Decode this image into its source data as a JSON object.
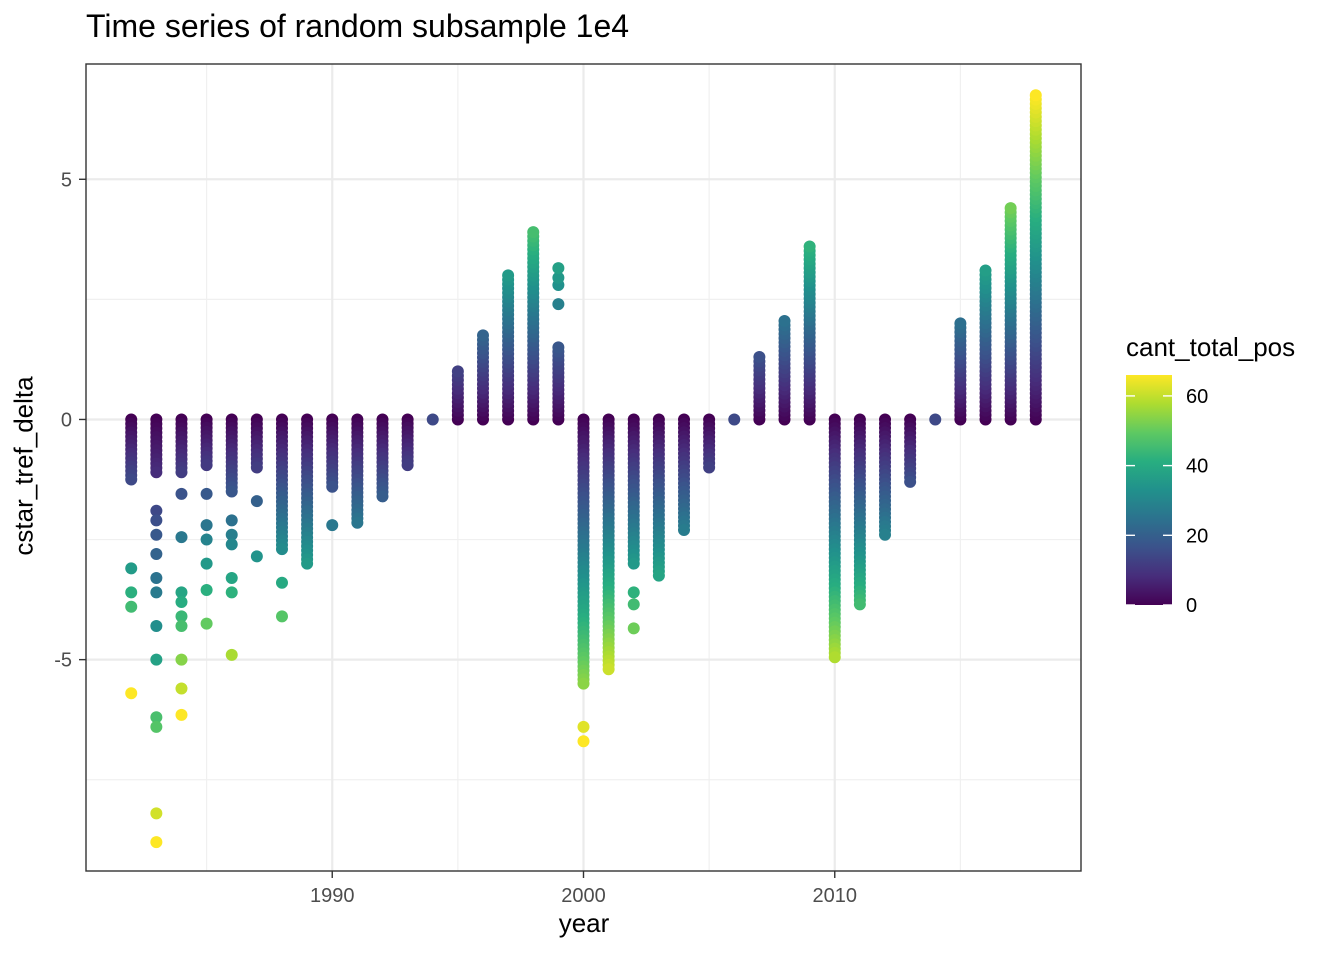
{
  "chart_data": {
    "type": "scatter",
    "title": "Time series of random subsample 1e4",
    "xlabel": "year",
    "ylabel": "cstar_tref_delta",
    "xlim": [
      1980.2,
      2019.8
    ],
    "ylim": [
      -9.4,
      7.4
    ],
    "x_ticks": [
      1990,
      2000,
      2010
    ],
    "x_tick_labels": [
      "1990",
      "2000",
      "2010"
    ],
    "y_ticks": [
      -5,
      0,
      5
    ],
    "y_tick_labels": [
      "-5",
      "0",
      "5"
    ],
    "grid": true,
    "legend": {
      "title": "cant_total_pos",
      "position": "right",
      "type": "colorbar",
      "range": [
        0,
        66
      ],
      "ticks": [
        0,
        20,
        40,
        60
      ],
      "tick_labels": [
        "0",
        "20",
        "40",
        "60"
      ],
      "palette": "viridis"
    },
    "series": [
      {
        "year": 1982,
        "extreme": -1.25,
        "outliers": [
          -3.1,
          -3.6,
          -3.9,
          -5.7
        ]
      },
      {
        "year": 1983,
        "extreme": -1.1,
        "outliers": [
          -1.9,
          -2.1,
          -2.4,
          -2.8,
          -3.3,
          -3.6,
          -4.3,
          -5.0,
          -6.2,
          -6.4,
          -8.2,
          -8.8
        ]
      },
      {
        "year": 1984,
        "extreme": -1.1,
        "outliers": [
          -1.55,
          -2.45,
          -3.6,
          -3.8,
          -4.1,
          -4.3,
          -5.0,
          -5.6,
          -6.15
        ]
      },
      {
        "year": 1985,
        "extreme": -0.95,
        "outliers": [
          -1.55,
          -2.2,
          -2.5,
          -3.0,
          -3.55,
          -4.25
        ]
      },
      {
        "year": 1986,
        "extreme": -1.5,
        "outliers": [
          -2.1,
          -2.4,
          -2.6,
          -3.3,
          -3.6,
          -4.9
        ]
      },
      {
        "year": 1987,
        "extreme": -1.0,
        "outliers": [
          -1.7,
          -2.85
        ]
      },
      {
        "year": 1988,
        "extreme": -2.7,
        "outliers": [
          -3.4,
          -4.1
        ]
      },
      {
        "year": 1989,
        "extreme": -3.0,
        "outliers": []
      },
      {
        "year": 1990,
        "extreme": -1.4,
        "outliers": [
          -2.2
        ]
      },
      {
        "year": 1991,
        "extreme": -2.15,
        "outliers": []
      },
      {
        "year": 1992,
        "extreme": -1.6,
        "outliers": []
      },
      {
        "year": 1993,
        "extreme": -0.95,
        "outliers": []
      },
      {
        "year": 1994,
        "extreme": 0.0,
        "outliers": []
      },
      {
        "year": 1995,
        "extreme": 1.0,
        "outliers": []
      },
      {
        "year": 1996,
        "extreme": 1.75,
        "outliers": []
      },
      {
        "year": 1997,
        "extreme": 3.0,
        "outliers": []
      },
      {
        "year": 1998,
        "extreme": 3.9,
        "outliers": []
      },
      {
        "year": 1999,
        "extreme": 1.5,
        "outliers": [
          2.4,
          2.8,
          2.95,
          3.15
        ]
      },
      {
        "year": 2000,
        "extreme": -5.5,
        "outliers": [
          -6.4,
          -6.7
        ]
      },
      {
        "year": 2001,
        "extreme": -5.2,
        "outliers": []
      },
      {
        "year": 2002,
        "extreme": -3.0,
        "outliers": [
          -3.6,
          -3.85,
          -4.35
        ]
      },
      {
        "year": 2003,
        "extreme": -3.25,
        "outliers": []
      },
      {
        "year": 2004,
        "extreme": -2.3,
        "outliers": []
      },
      {
        "year": 2005,
        "extreme": -1.0,
        "outliers": []
      },
      {
        "year": 2006,
        "extreme": 0.0,
        "outliers": []
      },
      {
        "year": 2007,
        "extreme": 1.3,
        "outliers": []
      },
      {
        "year": 2008,
        "extreme": 2.05,
        "outliers": []
      },
      {
        "year": 2009,
        "extreme": 3.6,
        "outliers": []
      },
      {
        "year": 2010,
        "extreme": -4.95,
        "outliers": []
      },
      {
        "year": 2011,
        "extreme": -3.85,
        "outliers": []
      },
      {
        "year": 2012,
        "extreme": -2.4,
        "outliers": []
      },
      {
        "year": 2013,
        "extreme": -1.3,
        "outliers": []
      },
      {
        "year": 2014,
        "extreme": 0.0,
        "outliers": []
      },
      {
        "year": 2015,
        "extreme": 2.0,
        "outliers": []
      },
      {
        "year": 2016,
        "extreme": 3.1,
        "outliers": []
      },
      {
        "year": 2017,
        "extreme": 4.4,
        "outliers": []
      },
      {
        "year": 2018,
        "extreme": 6.75,
        "outliers": []
      }
    ]
  }
}
